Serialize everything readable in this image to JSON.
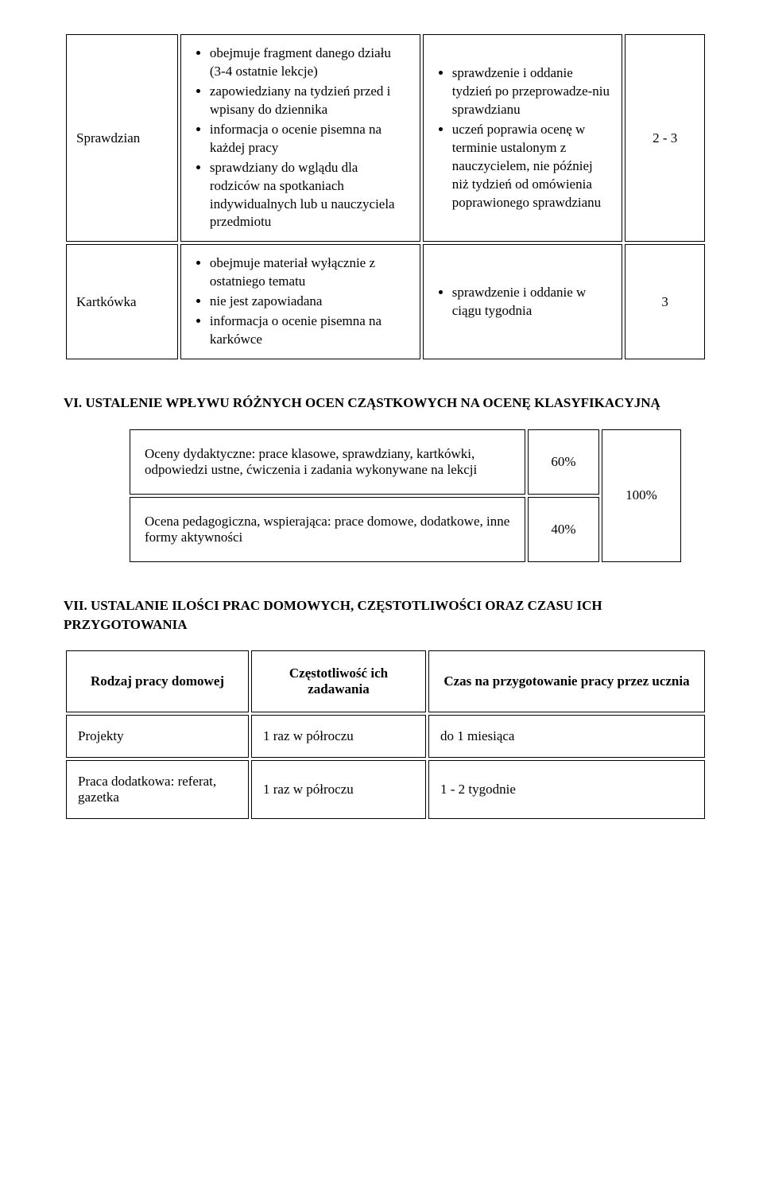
{
  "table1": {
    "rows": [
      {
        "label": "Sprawdzian",
        "col2_items": [
          "obejmuje fragment danego działu (3-4 ostatnie lekcje)",
          "zapowiedziany na tydzień przed i wpisany do dziennika",
          "informacja o ocenie pisemna na każdej pracy",
          "sprawdziany do wglądu dla rodziców na spotkaniach indywidualnych lub u nauczyciela przedmiotu"
        ],
        "col3_items": [
          "sprawdzenie i oddanie tydzień po przeprowadze-niu sprawdzianu",
          "uczeń poprawia ocenę w terminie ustalonym z nauczycielem, nie później niż tydzień od omówienia poprawionego sprawdzianu"
        ],
        "col4": "2 - 3"
      },
      {
        "label": "Kartkówka",
        "col2_items": [
          "obejmuje materiał wyłącznie z ostatniego tematu",
          "nie jest zapowiadana",
          "informacja o ocenie pisemna na karkówce"
        ],
        "col3_items": [
          "sprawdzenie i oddanie w ciągu tygodnia"
        ],
        "col4": "3"
      }
    ]
  },
  "heading_vi": "VI. USTALENIE WPŁYWU RÓŻNYCH OCEN CZĄSTKOWYCH NA OCENĘ KLASYFIKACYJNĄ",
  "table2": {
    "row1_text": "Oceny dydaktyczne: prace klasowe, sprawdziany, kartkówki, odpowiedzi ustne, ćwiczenia i zadania wykonywane na lekcji",
    "row1_pct": "60%",
    "row2_text": "Ocena pedagogiczna, wspierająca: prace domowe, dodatkowe, inne formy aktywności",
    "row2_pct": "40%",
    "total_pct": "100%"
  },
  "heading_vii": "VII. USTALANIE ILOŚCI PRAC DOMOWYCH, CZĘSTOTLIWOŚCI ORAZ CZASU ICH PRZYGOTOWANIA",
  "table3": {
    "headers": [
      "Rodzaj pracy domowej",
      "Częstotliwość ich zadawania",
      "Czas na przygotowanie pracy przez ucznia"
    ],
    "rows": [
      [
        "Projekty",
        "1 raz w półroczu",
        "do 1 miesiąca"
      ],
      [
        "Praca dodatkowa: referat, gazetka",
        "1 raz w półroczu",
        "1 - 2 tygodnie"
      ]
    ]
  }
}
